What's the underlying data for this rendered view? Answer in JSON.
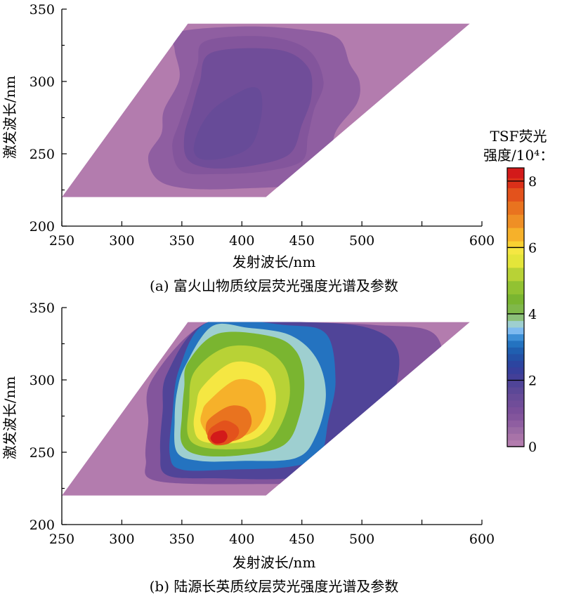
{
  "chart_data": [
    {
      "type": "heatmap",
      "caption": "(a) 富火山物质纹层荧光强度光谱及参数",
      "xlabel": "发射波长/nm",
      "ylabel": "激发波长/nm",
      "xlim": [
        250,
        600
      ],
      "ylim": [
        200,
        350
      ],
      "xticks": [
        "250",
        "300",
        "350",
        "400",
        "450",
        "500",
        "600"
      ],
      "yticks": [
        "200",
        "250",
        "300",
        "350"
      ],
      "measured_region": {
        "excitation_range": [
          220,
          340
        ],
        "emission_at_ex_220": [
          250,
          420
        ],
        "emission_at_ex_340": [
          355,
          590
        ]
      },
      "peak": {
        "emission": 385,
        "excitation": 270,
        "intensity": 1.4
      },
      "contours": [
        {
          "level": 0.6,
          "points": [
            [
              346,
              334
            ],
            [
              400,
              338
            ],
            [
              448,
              336
            ],
            [
              480,
              330
            ],
            [
              490,
              312
            ],
            [
              498,
              300
            ],
            [
              496,
              285
            ],
            [
              478,
              265
            ],
            [
              474,
              245
            ],
            [
              458,
              230
            ],
            [
              400,
              226
            ],
            [
              355,
              226
            ],
            [
              330,
              232
            ],
            [
              322,
              248
            ],
            [
              333,
              264
            ],
            [
              335,
              280
            ],
            [
              348,
              302
            ],
            [
              344,
              322
            ]
          ]
        },
        {
          "level": 0.9,
          "points": [
            [
              370,
              328
            ],
            [
              420,
              331
            ],
            [
              455,
              322
            ],
            [
              468,
              300
            ],
            [
              460,
              280
            ],
            [
              455,
              262
            ],
            [
              450,
              245
            ],
            [
              420,
              238
            ],
            [
              380,
              236
            ],
            [
              350,
              238
            ],
            [
              342,
              255
            ],
            [
              348,
              272
            ],
            [
              356,
              292
            ],
            [
              363,
              312
            ]
          ]
        },
        {
          "level": 1.2,
          "points": [
            [
              375,
              320
            ],
            [
              430,
              322
            ],
            [
              455,
              310
            ],
            [
              458,
              290
            ],
            [
              450,
              270
            ],
            [
              440,
              250
            ],
            [
              410,
              242
            ],
            [
              375,
              240
            ],
            [
              355,
              246
            ],
            [
              352,
              262
            ],
            [
              358,
              280
            ],
            [
              365,
              300
            ]
          ]
        },
        {
          "level": 1.4,
          "points": [
            [
              392,
              290
            ],
            [
              408,
              296
            ],
            [
              416,
              292
            ],
            [
              416,
              275
            ],
            [
              408,
              256
            ],
            [
              390,
              248
            ],
            [
              368,
              246
            ],
            [
              360,
              252
            ],
            [
              364,
              266
            ],
            [
              375,
              280
            ]
          ]
        }
      ]
    },
    {
      "type": "heatmap",
      "caption": "(b) 陆源长英质纹层荧光强度光谱及参数",
      "xlabel": "发射波长/nm",
      "ylabel": "激发波长/nm",
      "xlim": [
        250,
        600
      ],
      "ylim": [
        200,
        350
      ],
      "xticks": [
        "250",
        "300",
        "350",
        "400",
        "450",
        "500",
        "600"
      ],
      "yticks": [
        "200",
        "250",
        "300",
        "350"
      ],
      "measured_region": {
        "excitation_range": [
          220,
          340
        ],
        "emission_at_ex_220": [
          250,
          420
        ],
        "emission_at_ex_340": [
          355,
          590
        ]
      },
      "peak": {
        "emission": 378,
        "excitation": 258,
        "intensity": 8.2
      },
      "contours": [
        {
          "level": 0.8,
          "points": [
            [
              325,
              300
            ],
            [
              372,
              340
            ],
            [
              440,
              340
            ],
            [
              510,
              338
            ],
            [
              560,
              332
            ],
            [
              565,
              300
            ],
            [
              540,
              260
            ],
            [
              520,
              238
            ],
            [
              480,
              230
            ],
            [
              420,
              228
            ],
            [
              330,
              230
            ],
            [
              320,
              245
            ],
            [
              322,
              270
            ]
          ]
        },
        {
          "level": 1.8,
          "points": [
            [
              338,
              305
            ],
            [
              372,
              340
            ],
            [
              450,
              340
            ],
            [
              505,
              336
            ],
            [
              530,
              320
            ],
            [
              525,
              285
            ],
            [
              505,
              255
            ],
            [
              480,
              240
            ],
            [
              440,
              232
            ],
            [
              380,
              232
            ],
            [
              338,
              234
            ],
            [
              332,
              250
            ],
            [
              334,
              278
            ]
          ]
        },
        {
          "level": 3.0,
          "points": [
            [
              348,
              308
            ],
            [
              372,
              340
            ],
            [
              435,
              338
            ],
            [
              470,
              332
            ],
            [
              478,
              300
            ],
            [
              472,
              272
            ],
            [
              465,
              248
            ],
            [
              440,
              240
            ],
            [
              390,
              238
            ],
            [
              350,
              238
            ],
            [
              340,
              248
            ],
            [
              342,
              275
            ]
          ]
        },
        {
          "level": 3.6,
          "points": [
            [
              353,
              310
            ],
            [
              375,
              337
            ],
            [
              405,
              336
            ],
            [
              440,
              331
            ],
            [
              462,
              315
            ],
            [
              470,
              290
            ],
            [
              462,
              262
            ],
            [
              445,
              246
            ],
            [
              400,
              244
            ],
            [
              365,
              244
            ],
            [
              346,
              250
            ],
            [
              344,
              272
            ],
            [
              346,
              292
            ]
          ]
        },
        {
          "level": 4.3,
          "points": [
            [
              355,
              312
            ],
            [
              380,
              332
            ],
            [
              425,
              330
            ],
            [
              445,
              320
            ],
            [
              452,
              300
            ],
            [
              448,
              275
            ],
            [
              435,
              255
            ],
            [
              400,
              248
            ],
            [
              365,
              248
            ],
            [
              350,
              256
            ],
            [
              350,
              275
            ],
            [
              352,
              295
            ]
          ]
        },
        {
          "level": 5.0,
          "points": [
            [
              360,
              305
            ],
            [
              385,
              322
            ],
            [
              415,
              322
            ],
            [
              435,
              310
            ],
            [
              440,
              290
            ],
            [
              432,
              268
            ],
            [
              418,
              255
            ],
            [
              390,
              252
            ],
            [
              365,
              254
            ],
            [
              355,
              262
            ],
            [
              356,
              282
            ]
          ]
        },
        {
          "level": 5.8,
          "points": [
            [
              367,
              295
            ],
            [
              392,
              312
            ],
            [
              418,
              308
            ],
            [
              428,
              292
            ],
            [
              425,
              272
            ],
            [
              412,
              260
            ],
            [
              388,
              256
            ],
            [
              366,
              258
            ],
            [
              360,
              268
            ],
            [
              362,
              282
            ]
          ]
        },
        {
          "level": 6.4,
          "points": [
            [
              372,
              285
            ],
            [
              395,
              300
            ],
            [
              415,
              296
            ],
            [
              420,
              280
            ],
            [
              412,
              266
            ],
            [
              395,
              260
            ],
            [
              374,
              262
            ],
            [
              366,
              270
            ],
            [
              367,
              278
            ]
          ]
        },
        {
          "level": 7.0,
          "points": [
            [
              374,
              274
            ],
            [
              390,
              282
            ],
            [
              404,
              280
            ],
            [
              408,
              270
            ],
            [
              400,
              260
            ],
            [
              384,
              257
            ],
            [
              372,
              261
            ],
            [
              370,
              268
            ]
          ]
        },
        {
          "level": 7.6,
          "points": [
            [
              376,
              268
            ],
            [
              386,
              272
            ],
            [
              396,
              268
            ],
            [
              397,
              262
            ],
            [
              389,
              256
            ],
            [
              378,
              255
            ],
            [
              372,
              259
            ],
            [
              372,
              264
            ]
          ]
        },
        {
          "level": 8.2,
          "points": [
            [
              378,
              264
            ],
            [
              385,
              265
            ],
            [
              388,
              261
            ],
            [
              385,
              257
            ],
            [
              378,
              256
            ],
            [
              374,
              259
            ],
            [
              375,
              262
            ]
          ]
        }
      ]
    }
  ],
  "colorbar": {
    "title_line1": "TSF荧光",
    "title_line2": "强度/10⁴",
    "title_suffix": "：",
    "range": [
      0,
      8.4
    ],
    "tick_labels": [
      "0",
      "2",
      "4",
      "6",
      "8"
    ],
    "tick_values": [
      0,
      2,
      4,
      6,
      8
    ],
    "bands": [
      {
        "from": 0.0,
        "to": 0.2,
        "color": "#b37cae"
      },
      {
        "from": 0.2,
        "to": 0.4,
        "color": "#a873a8"
      },
      {
        "from": 0.4,
        "to": 0.6,
        "color": "#9a6aa4"
      },
      {
        "from": 0.6,
        "to": 0.8,
        "color": "#8f5ea1"
      },
      {
        "from": 0.8,
        "to": 1.0,
        "color": "#83559c"
      },
      {
        "from": 1.0,
        "to": 1.2,
        "color": "#7a4f9a"
      },
      {
        "from": 1.2,
        "to": 1.4,
        "color": "#704d99"
      },
      {
        "from": 1.4,
        "to": 1.6,
        "color": "#674b98"
      },
      {
        "from": 1.6,
        "to": 1.8,
        "color": "#5c4897"
      },
      {
        "from": 1.8,
        "to": 2.0,
        "color": "#504498"
      },
      {
        "from": 2.0,
        "to": 2.2,
        "color": "#433f98"
      },
      {
        "from": 2.2,
        "to": 2.4,
        "color": "#373f9c"
      },
      {
        "from": 2.4,
        "to": 2.6,
        "color": "#2c45a0"
      },
      {
        "from": 2.6,
        "to": 2.8,
        "color": "#2451a6"
      },
      {
        "from": 2.8,
        "to": 3.0,
        "color": "#205fb0"
      },
      {
        "from": 3.0,
        "to": 3.2,
        "color": "#2473c0"
      },
      {
        "from": 3.2,
        "to": 3.4,
        "color": "#3d8fd6"
      },
      {
        "from": 3.4,
        "to": 3.6,
        "color": "#7dbaf0"
      },
      {
        "from": 3.6,
        "to": 3.8,
        "color": "#9ecfd0"
      },
      {
        "from": 3.8,
        "to": 4.0,
        "color": "#8cc07a"
      },
      {
        "from": 4.0,
        "to": 4.3,
        "color": "#80b84a"
      },
      {
        "from": 4.3,
        "to": 4.6,
        "color": "#7ab530"
      },
      {
        "from": 4.6,
        "to": 5.0,
        "color": "#92c232"
      },
      {
        "from": 5.0,
        "to": 5.4,
        "color": "#b8d236"
      },
      {
        "from": 5.4,
        "to": 5.8,
        "color": "#e4e53a"
      },
      {
        "from": 5.8,
        "to": 6.0,
        "color": "#f5e742"
      },
      {
        "from": 6.0,
        "to": 6.2,
        "color": "#f9d132"
      },
      {
        "from": 6.2,
        "to": 6.6,
        "color": "#f6b12a"
      },
      {
        "from": 6.6,
        "to": 7.0,
        "color": "#ef8f25"
      },
      {
        "from": 7.0,
        "to": 7.4,
        "color": "#e9731f"
      },
      {
        "from": 7.4,
        "to": 7.8,
        "color": "#e3521c"
      },
      {
        "from": 7.8,
        "to": 8.1,
        "color": "#db3019"
      },
      {
        "from": 8.1,
        "to": 8.4,
        "color": "#d31a1a"
      }
    ]
  }
}
